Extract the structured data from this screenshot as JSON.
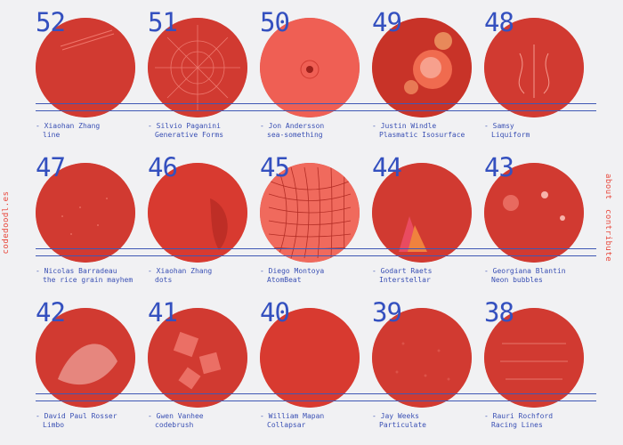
{
  "brand": "codedoodl.es",
  "nav": {
    "about": "about",
    "contribute": "contribute"
  },
  "colors": {
    "accent": "#e8473b",
    "blue": "#3a50b4",
    "background": "#f1f1f3"
  },
  "doodles": [
    {
      "number": "52",
      "author": "- Xiaohan Zhang",
      "title": "line"
    },
    {
      "number": "51",
      "author": "- Silvio Paganini",
      "title": "Generative Forms"
    },
    {
      "number": "50",
      "author": "- Jon Andersson",
      "title": "sea-something"
    },
    {
      "number": "49",
      "author": "- Justin Windle",
      "title": "Plasmatic Isosurface"
    },
    {
      "number": "48",
      "author": "- Samsy",
      "title": "Liquiform"
    },
    {
      "number": "47",
      "author": "- Nicolas Barradeau",
      "title": "the rice grain mayhem"
    },
    {
      "number": "46",
      "author": "- Xiaohan Zhang",
      "title": "dots"
    },
    {
      "number": "45",
      "author": "- Diego Montoya",
      "title": "AtomBeat"
    },
    {
      "number": "44",
      "author": "- Godart Raets",
      "title": "Interstellar"
    },
    {
      "number": "43",
      "author": "- Georgiana Blantin",
      "title": "Neon bubbles"
    },
    {
      "number": "42",
      "author": "- David Paul Rosser",
      "title": "Limbo"
    },
    {
      "number": "41",
      "author": "- Gwen Vanhee",
      "title": "codebrush"
    },
    {
      "number": "40",
      "author": "- William Mapan",
      "title": "Collapsar"
    },
    {
      "number": "39",
      "author": "- Jay Weeks",
      "title": "Particulate"
    },
    {
      "number": "38",
      "author": "- Rauri Rochford",
      "title": "Racing Lines"
    }
  ]
}
